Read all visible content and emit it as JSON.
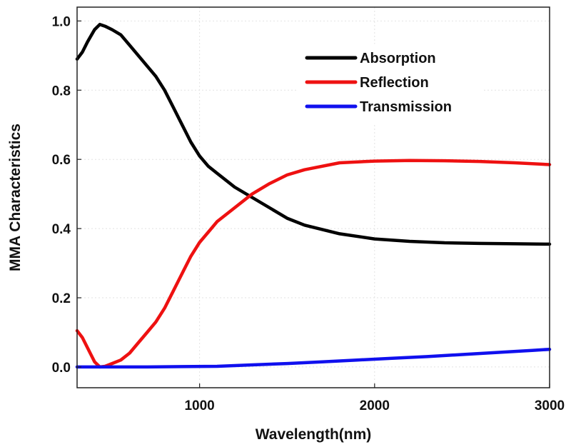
{
  "chart_data": {
    "type": "line",
    "title": "",
    "xlabel": "Wavelength(nm)",
    "ylabel": "MMA Characteristics",
    "xlim": [
      300,
      3000
    ],
    "ylim": [
      -0.06,
      1.04
    ],
    "xticks": [
      1000,
      2000,
      3000
    ],
    "xtick_labels": [
      "1000",
      "2000",
      "3000"
    ],
    "yticks": [
      0.0,
      0.2,
      0.4,
      0.6,
      0.8,
      1.0
    ],
    "ytick_labels": [
      "0.0",
      "0.2",
      "0.4",
      "0.6",
      "0.8",
      "1.0"
    ],
    "grid": true,
    "legend_position": "top-right",
    "series": [
      {
        "name": "Absorption",
        "color": "#000000",
        "x": [
          300,
          330,
          360,
          400,
          430,
          460,
          500,
          550,
          600,
          650,
          700,
          750,
          800,
          850,
          900,
          950,
          1000,
          1050,
          1100,
          1200,
          1300,
          1400,
          1500,
          1600,
          1800,
          2000,
          2200,
          2400,
          2600,
          2800,
          3000
        ],
        "y": [
          0.89,
          0.91,
          0.94,
          0.975,
          0.99,
          0.985,
          0.975,
          0.96,
          0.93,
          0.9,
          0.87,
          0.84,
          0.8,
          0.75,
          0.7,
          0.65,
          0.61,
          0.58,
          0.56,
          0.52,
          0.49,
          0.46,
          0.43,
          0.41,
          0.385,
          0.37,
          0.363,
          0.359,
          0.357,
          0.356,
          0.355
        ]
      },
      {
        "name": "Reflection",
        "color": "#ee1111",
        "x": [
          300,
          330,
          360,
          400,
          430,
          460,
          500,
          550,
          600,
          650,
          700,
          750,
          800,
          850,
          900,
          950,
          1000,
          1050,
          1100,
          1200,
          1300,
          1400,
          1500,
          1600,
          1800,
          2000,
          2200,
          2400,
          2600,
          2800,
          3000
        ],
        "y": [
          0.105,
          0.085,
          0.055,
          0.015,
          0.0,
          0.002,
          0.01,
          0.02,
          0.04,
          0.07,
          0.1,
          0.13,
          0.17,
          0.22,
          0.27,
          0.32,
          0.36,
          0.39,
          0.42,
          0.46,
          0.5,
          0.53,
          0.555,
          0.57,
          0.59,
          0.595,
          0.597,
          0.596,
          0.594,
          0.59,
          0.585
        ]
      },
      {
        "name": "Transmission",
        "color": "#1010ee",
        "x": [
          300,
          500,
          700,
          900,
          1100,
          1300,
          1500,
          1700,
          1900,
          2100,
          2300,
          2500,
          2700,
          2900,
          3000
        ],
        "y": [
          0.0,
          0.0,
          0.0,
          0.001,
          0.002,
          0.006,
          0.01,
          0.015,
          0.02,
          0.025,
          0.03,
          0.036,
          0.042,
          0.048,
          0.051
        ]
      }
    ]
  }
}
